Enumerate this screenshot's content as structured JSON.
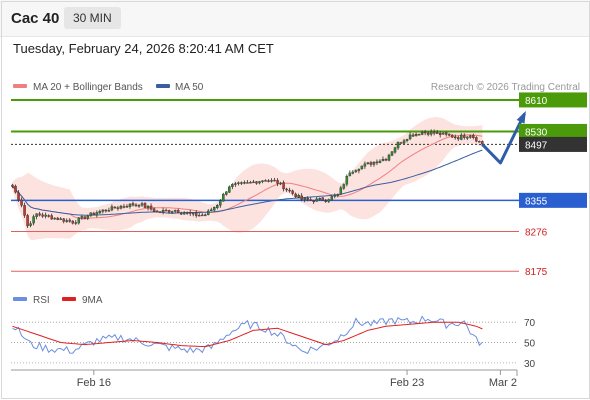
{
  "header": {
    "instrument": "Cac 40",
    "timeframe": "30 MIN",
    "timestamp": "Tuesday, February 24, 2026 8:20:41 AM CET"
  },
  "legend": {
    "ma20": "MA 20 + Bollinger Bands",
    "ma50": "MA 50",
    "credit": "Research © 2026 Trading Central",
    "ma20_color": "#f08080",
    "ma50_color": "#3a5fa0"
  },
  "rsi_legend": {
    "rsi": "RSI",
    "ma9": "9MA",
    "rsi_color": "#6a8ee0",
    "ma9_color": "#e02020"
  },
  "chart_data": [
    {
      "type": "candlestick",
      "title": "",
      "ylim": [
        8140,
        8620
      ],
      "x_ticks": [
        "Feb 16",
        "Feb 23",
        "Mar 2"
      ],
      "x_tick_index": [
        27,
        131,
        162
      ],
      "n_slots": 168,
      "candle_count": 157,
      "anchors": [
        [
          0,
          8390
        ],
        [
          3,
          8345
        ],
        [
          5,
          8290
        ],
        [
          8,
          8320
        ],
        [
          14,
          8310
        ],
        [
          20,
          8300
        ],
        [
          28,
          8325
        ],
        [
          36,
          8340
        ],
        [
          42,
          8346
        ],
        [
          48,
          8326
        ],
        [
          54,
          8330
        ],
        [
          60,
          8318
        ],
        [
          64,
          8318
        ],
        [
          68,
          8345
        ],
        [
          72,
          8392
        ],
        [
          78,
          8398
        ],
        [
          84,
          8408
        ],
        [
          88,
          8400
        ],
        [
          92,
          8378
        ],
        [
          96,
          8358
        ],
        [
          100,
          8355
        ],
        [
          104,
          8358
        ],
        [
          108,
          8368
        ],
        [
          112,
          8428
        ],
        [
          116,
          8442
        ],
        [
          120,
          8452
        ],
        [
          124,
          8462
        ],
        [
          128,
          8500
        ],
        [
          132,
          8520
        ],
        [
          136,
          8528
        ],
        [
          140,
          8526
        ],
        [
          144,
          8520
        ],
        [
          148,
          8515
        ],
        [
          152,
          8522
        ],
        [
          154,
          8510
        ],
        [
          156,
          8498
        ]
      ],
      "levels": [
        {
          "value": 8610,
          "label": "8610",
          "color": "#4a9a0a",
          "style": "solid",
          "badge": true
        },
        {
          "value": 8530,
          "label": "8530",
          "color": "#4a9a0a",
          "style": "solid",
          "badge": true
        },
        {
          "value": 8497,
          "label": "8497",
          "color": "#333333",
          "style": "dotted",
          "badge": true
        },
        {
          "value": 8355,
          "label": "8355",
          "color": "#2a5fd0",
          "style": "solid",
          "badge": true
        },
        {
          "value": 8276,
          "label": "8276",
          "color": "#e06060",
          "style": "thin",
          "badge": false
        },
        {
          "value": 8175,
          "label": "8175",
          "color": "#e06060",
          "style": "thin",
          "badge": false
        }
      ],
      "scenario_arrow": [
        [
          156,
          8497
        ],
        [
          162,
          8450
        ],
        [
          170,
          8575
        ]
      ],
      "arrow_color": "#2f5ea8"
    },
    {
      "type": "line",
      "title": "",
      "ylim": [
        25,
        80
      ],
      "y_ticks": [
        70,
        50,
        30
      ],
      "series": [
        {
          "name": "RSI",
          "anchors": [
            [
              0,
              68
            ],
            [
              6,
              48
            ],
            [
              12,
              44
            ],
            [
              20,
              42
            ],
            [
              28,
              52
            ],
            [
              36,
              55
            ],
            [
              44,
              50
            ],
            [
              52,
              45
            ],
            [
              60,
              42
            ],
            [
              66,
              45
            ],
            [
              72,
              60
            ],
            [
              78,
              68
            ],
            [
              84,
              64
            ],
            [
              90,
              55
            ],
            [
              96,
              42
            ],
            [
              102,
              45
            ],
            [
              108,
              54
            ],
            [
              114,
              70
            ],
            [
              120,
              68
            ],
            [
              126,
              72
            ],
            [
              132,
              70
            ],
            [
              138,
              74
            ],
            [
              144,
              68
            ],
            [
              150,
              70
            ],
            [
              154,
              52
            ],
            [
              157,
              48
            ]
          ]
        },
        {
          "name": "9MA",
          "anchors": [
            [
              0,
              66
            ],
            [
              8,
              58
            ],
            [
              16,
              50
            ],
            [
              24,
              48
            ],
            [
              32,
              50
            ],
            [
              40,
              52
            ],
            [
              48,
              50
            ],
            [
              56,
              47
            ],
            [
              64,
              46
            ],
            [
              72,
              52
            ],
            [
              80,
              62
            ],
            [
              88,
              64
            ],
            [
              96,
              56
            ],
            [
              104,
              48
            ],
            [
              110,
              52
            ],
            [
              118,
              62
            ],
            [
              124,
              66
            ],
            [
              132,
              68
            ],
            [
              140,
              70
            ],
            [
              148,
              70
            ],
            [
              154,
              66
            ],
            [
              157,
              62
            ]
          ]
        }
      ]
    }
  ]
}
